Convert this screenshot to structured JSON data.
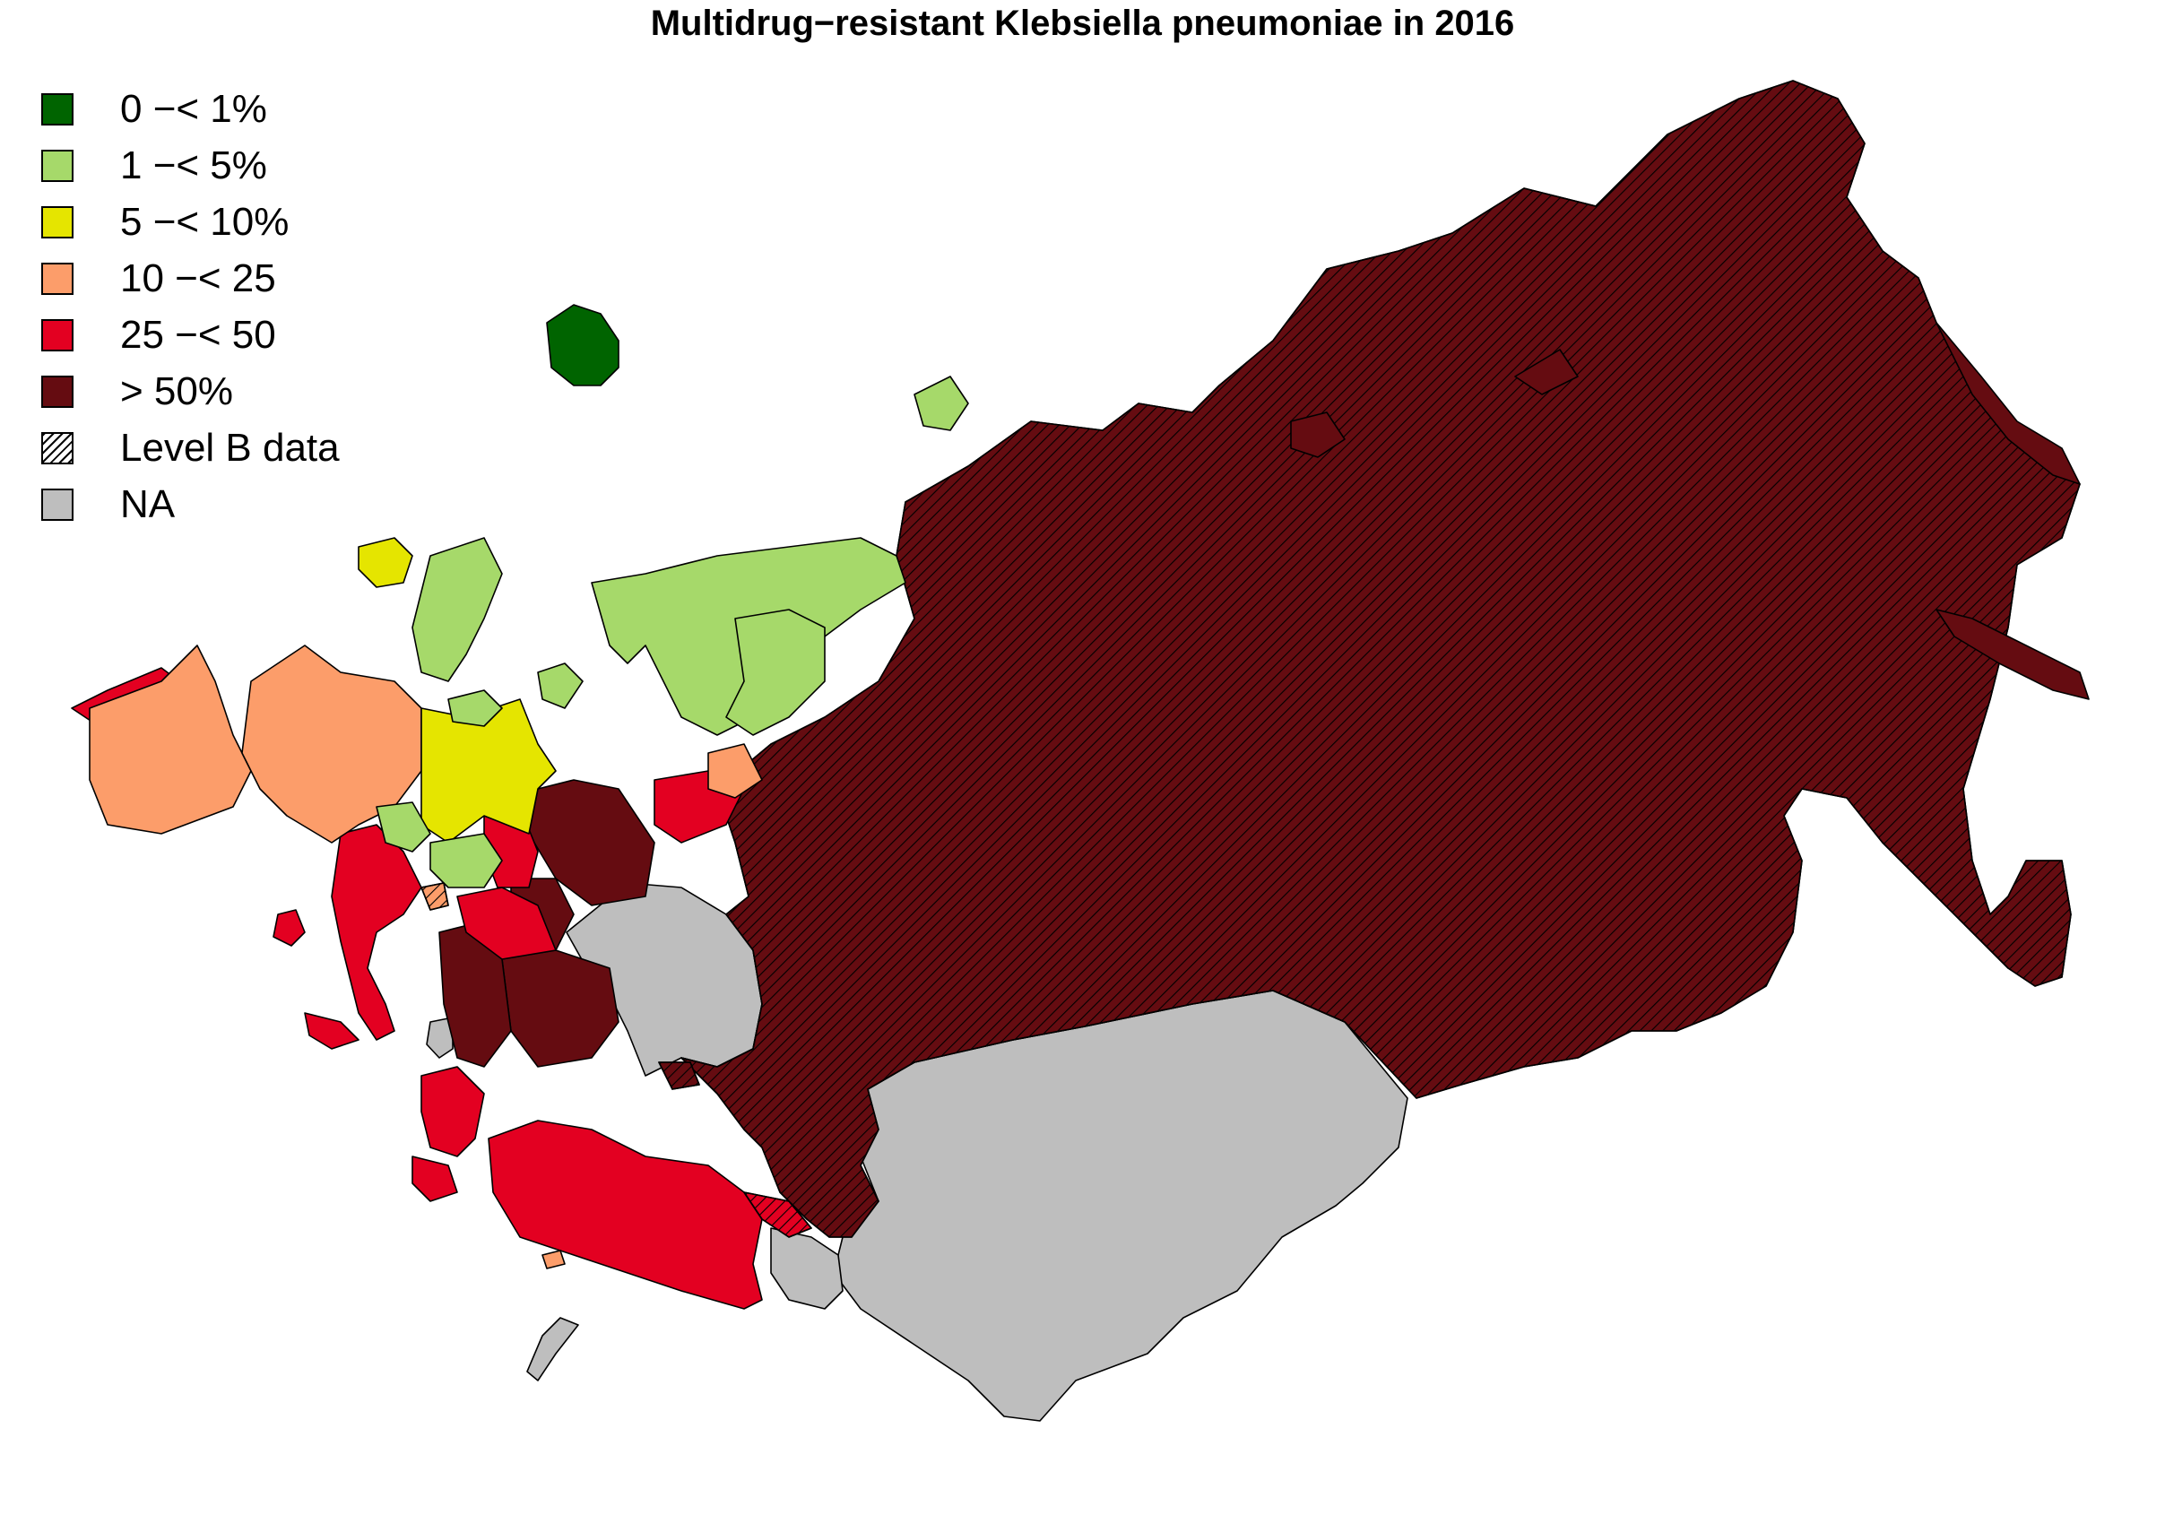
{
  "title": "Multidrug−resistant Klebsiella pneumoniae in 2016",
  "colors": {
    "c0_1": "#006400",
    "c1_5": "#A6D96A",
    "c5_10": "#E5E500",
    "c10_25": "#FC9D6A",
    "c25_50": "#E30021",
    "c50": "#650C11",
    "na": "#BEBEBE"
  },
  "legend": [
    {
      "label": "0 −< 1%",
      "color": "#006400",
      "pattern": false
    },
    {
      "label": "1 −< 5%",
      "color": "#A6D96A",
      "pattern": false
    },
    {
      "label": "5 −< 10%",
      "color": "#E5E500",
      "pattern": false
    },
    {
      "label": "10 −< 25",
      "color": "#FC9D6A",
      "pattern": false
    },
    {
      "label": "25 −< 50",
      "color": "#E30021",
      "pattern": false
    },
    {
      "label": "> 50%",
      "color": "#650C11",
      "pattern": false
    },
    {
      "label": "Level B data",
      "color": "#FFFFFF",
      "pattern": true
    },
    {
      "label": "NA",
      "color": "#BEBEBE",
      "pattern": false
    }
  ]
}
